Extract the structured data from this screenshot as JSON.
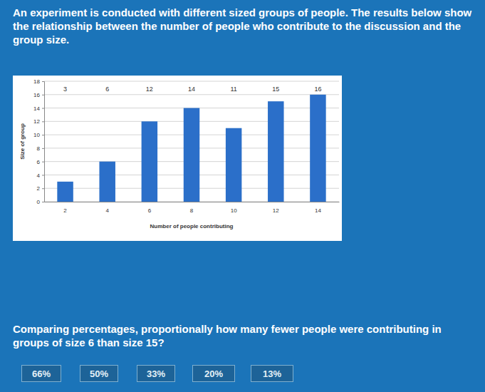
{
  "page": {
    "intro": "An experiment is conducted with different sized groups of people. The results below show the relationship between the number of people who contribute to the discussion and the group size.",
    "question": "Comparing percentages, proportionally how many fewer people were contributing in groups of size 6 than size 15?",
    "options": [
      "66%",
      "50%",
      "33%",
      "20%",
      "13%"
    ]
  },
  "chart_data": {
    "type": "bar",
    "x_label": "Number of people contributing",
    "y_label": "Size of group",
    "categories": [
      "2",
      "4",
      "6",
      "8",
      "10",
      "12",
      "14"
    ],
    "values": [
      3,
      6,
      12,
      14,
      11,
      15,
      16
    ],
    "color": "#2b6fc9",
    "ylim": [
      0,
      18
    ],
    "yticks": [
      0,
      2,
      4,
      6,
      8,
      10,
      12,
      14,
      16,
      18
    ],
    "grid": true,
    "data_labels": true
  }
}
